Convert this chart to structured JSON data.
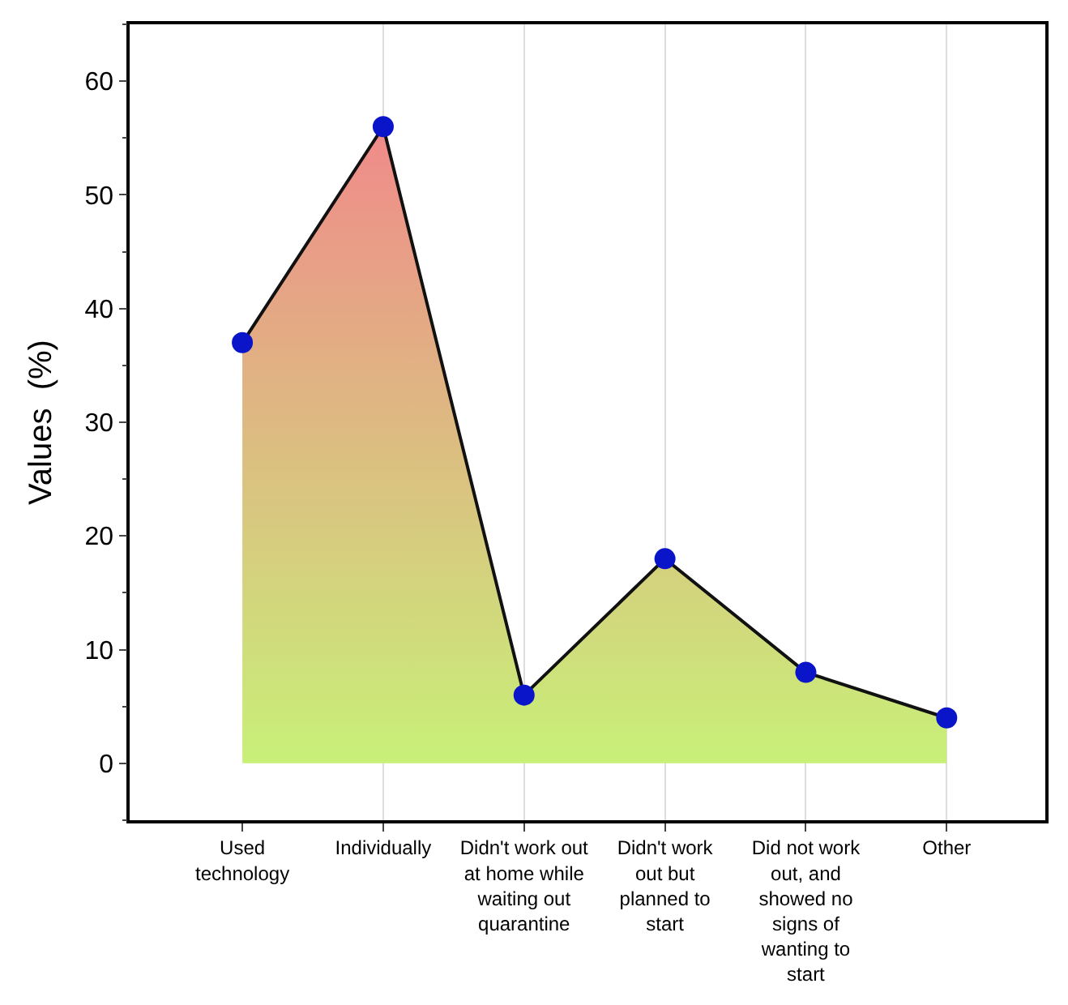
{
  "chart_data": {
    "type": "area",
    "ylabel": "Values  (%)",
    "categories": [
      "Used technology",
      "Individually",
      "Didn't work out at home while waiting out quarantine",
      "Didn't work out but planned to start",
      "Did not work out, and showed no signs of wanting to start",
      "Other"
    ],
    "series": [
      {
        "color": "#0a14c8",
        "values": [
          37,
          56,
          6,
          18,
          8,
          4
        ]
      }
    ],
    "ylim": [
      -5,
      65
    ],
    "yticks": [
      0,
      10,
      20,
      30,
      40,
      50,
      60
    ],
    "grid": "x",
    "marker": "circle",
    "line_style": "solid"
  }
}
